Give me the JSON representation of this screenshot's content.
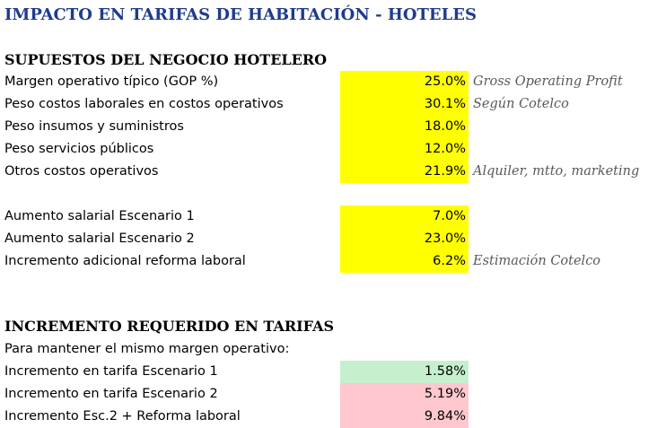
{
  "title": "IMPACTO EN TARIFAS DE HABITACIÓN - HOTELES",
  "colors": {
    "title": "#1F3C8C",
    "input_yellow": "#FFFF00",
    "result_green": "#C6EFCE",
    "result_red": "#FFC7CE",
    "note_gray": "#595959"
  },
  "assumptions": {
    "header": "SUPUESTOS DEL NEGOCIO HOTELERO",
    "rows": [
      {
        "label": "Margen operativo típico (GOP %)",
        "value": "25.0%",
        "note": "Gross Operating Profit"
      },
      {
        "label": "Peso costos laborales en costos operativos",
        "value": "30.1%",
        "note": "Según Cotelco"
      },
      {
        "label": "Peso insumos y suministros",
        "value": "18.0%",
        "note": ""
      },
      {
        "label": "Peso servicios públicos",
        "value": "12.0%",
        "note": ""
      },
      {
        "label": "Otros costos operativos",
        "value": "21.9%",
        "note": "Alquiler, mtto, marketing"
      }
    ]
  },
  "scenarios": {
    "rows": [
      {
        "label": "Aumento salarial Escenario 1",
        "value": "7.0%",
        "note": ""
      },
      {
        "label": "Aumento salarial Escenario 2",
        "value": "23.0%",
        "note": ""
      },
      {
        "label": "Incremento adicional reforma laboral",
        "value": "6.2%",
        "note": "Estimación Cotelco"
      }
    ]
  },
  "results": {
    "header": "INCREMENTO REQUERIDO EN TARIFAS",
    "subtitle": "Para mantener el mismo margen operativo:",
    "rows": [
      {
        "label": "Incremento en tarifa Escenario 1",
        "value": "1.58%",
        "status": "green"
      },
      {
        "label": "Incremento en tarifa Escenario 2",
        "value": "5.19%",
        "status": "red"
      },
      {
        "label": "Incremento Esc.2 + Reforma laboral",
        "value": "9.84%",
        "status": "red"
      }
    ]
  }
}
